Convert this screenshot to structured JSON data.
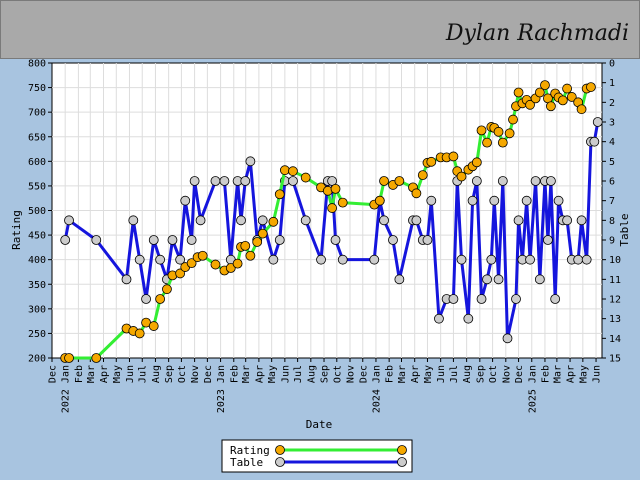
{
  "header": {
    "player_name": "Dylan Rachmadi",
    "background": "#a9a9a9"
  },
  "chart_data": {
    "type": "line",
    "title": "",
    "xlabel": "Date",
    "ylabel_left": "Rating",
    "ylabel_right": "Table",
    "ylim_left": [
      200,
      800
    ],
    "yticks_left": [
      200,
      250,
      300,
      350,
      400,
      450,
      500,
      550,
      600,
      650,
      700,
      750,
      800
    ],
    "ylim_right": [
      15,
      0
    ],
    "yticks_right": [
      0,
      1,
      2,
      3,
      4,
      5,
      6,
      7,
      8,
      9,
      10,
      11,
      12,
      13,
      14,
      15
    ],
    "xlim": [
      "2021-12-01",
      "2025-06-15"
    ],
    "x_tick_labels": [
      {
        "d": "2021-12-01",
        "label": "Dec"
      },
      {
        "d": "2022-01-01",
        "label": "2022 Jan"
      },
      {
        "d": "2022-02-01",
        "label": "Feb"
      },
      {
        "d": "2022-03-01",
        "label": "Mar"
      },
      {
        "d": "2022-04-01",
        "label": "Apr"
      },
      {
        "d": "2022-05-01",
        "label": "May"
      },
      {
        "d": "2022-06-01",
        "label": "Jun"
      },
      {
        "d": "2022-07-01",
        "label": "Jul"
      },
      {
        "d": "2022-08-01",
        "label": "Aug"
      },
      {
        "d": "2022-09-01",
        "label": "Sep"
      },
      {
        "d": "2022-10-01",
        "label": "Oct"
      },
      {
        "d": "2022-11-01",
        "label": "Nov"
      },
      {
        "d": "2022-12-01",
        "label": "Dec"
      },
      {
        "d": "2023-01-01",
        "label": "2023 Jan"
      },
      {
        "d": "2023-02-01",
        "label": "Feb"
      },
      {
        "d": "2023-03-01",
        "label": "Mar"
      },
      {
        "d": "2023-04-01",
        "label": "Apr"
      },
      {
        "d": "2023-05-01",
        "label": "May"
      },
      {
        "d": "2023-06-01",
        "label": "Jun"
      },
      {
        "d": "2023-07-01",
        "label": "Jul"
      },
      {
        "d": "2023-08-01",
        "label": "Aug"
      },
      {
        "d": "2023-09-01",
        "label": "Sep"
      },
      {
        "d": "2023-10-01",
        "label": "Oct"
      },
      {
        "d": "2023-11-01",
        "label": "Nov"
      },
      {
        "d": "2023-12-01",
        "label": "Dec"
      },
      {
        "d": "2024-01-01",
        "label": "2024 Jan"
      },
      {
        "d": "2024-02-01",
        "label": "Feb"
      },
      {
        "d": "2024-03-01",
        "label": "Mar"
      },
      {
        "d": "2024-04-01",
        "label": "Apr"
      },
      {
        "d": "2024-05-01",
        "label": "May"
      },
      {
        "d": "2024-06-01",
        "label": "Jun"
      },
      {
        "d": "2024-07-01",
        "label": "Jul"
      },
      {
        "d": "2024-08-01",
        "label": "Aug"
      },
      {
        "d": "2024-09-01",
        "label": "Sep"
      },
      {
        "d": "2024-10-01",
        "label": "Oct"
      },
      {
        "d": "2024-11-01",
        "label": "Nov"
      },
      {
        "d": "2024-12-01",
        "label": "Dec"
      },
      {
        "d": "2025-01-01",
        "label": "2025 Jan"
      },
      {
        "d": "2025-02-01",
        "label": "Feb"
      },
      {
        "d": "2025-03-01",
        "label": "Mar"
      },
      {
        "d": "2025-04-01",
        "label": "Apr"
      },
      {
        "d": "2025-05-01",
        "label": "May"
      },
      {
        "d": "2025-06-01",
        "label": "Jun"
      }
    ],
    "grid": true,
    "legend_position": "bottom-center",
    "series": [
      {
        "name": "Rating",
        "axis": "left",
        "line_color": "#33ee33",
        "marker_color": "#f5a800",
        "points": [
          [
            "2022-01-01",
            200
          ],
          [
            "2022-01-10",
            200
          ],
          [
            "2022-03-15",
            200
          ],
          [
            "2022-05-25",
            260
          ],
          [
            "2022-06-10",
            255
          ],
          [
            "2022-06-25",
            250
          ],
          [
            "2022-07-10",
            272
          ],
          [
            "2022-07-28",
            265
          ],
          [
            "2022-08-12",
            320
          ],
          [
            "2022-08-28",
            340
          ],
          [
            "2022-09-10",
            368
          ],
          [
            "2022-09-28",
            372
          ],
          [
            "2022-10-10",
            385
          ],
          [
            "2022-10-25",
            393
          ],
          [
            "2022-11-08",
            405
          ],
          [
            "2022-11-20",
            408
          ],
          [
            "2022-12-20",
            390
          ],
          [
            "2023-01-10",
            378
          ],
          [
            "2023-01-25",
            383
          ],
          [
            "2023-02-10",
            392
          ],
          [
            "2023-02-18",
            426
          ],
          [
            "2023-02-28",
            428
          ],
          [
            "2023-03-12",
            408
          ],
          [
            "2023-03-28",
            436
          ],
          [
            "2023-04-10",
            453
          ],
          [
            "2023-05-05",
            477
          ],
          [
            "2023-05-20",
            533
          ],
          [
            "2023-06-01",
            582
          ],
          [
            "2023-06-20",
            580
          ],
          [
            "2023-07-20",
            567
          ],
          [
            "2023-08-25",
            547
          ],
          [
            "2023-09-10",
            540
          ],
          [
            "2023-09-20",
            505
          ],
          [
            "2023-09-28",
            544
          ],
          [
            "2023-10-15",
            516
          ],
          [
            "2023-12-28",
            512
          ],
          [
            "2024-01-10",
            520
          ],
          [
            "2024-01-20",
            560
          ],
          [
            "2024-02-10",
            552
          ],
          [
            "2024-02-25",
            560
          ],
          [
            "2024-03-28",
            547
          ],
          [
            "2024-04-05",
            535
          ],
          [
            "2024-04-20",
            572
          ],
          [
            "2024-05-01",
            597
          ],
          [
            "2024-05-10",
            599
          ],
          [
            "2024-06-01",
            608
          ],
          [
            "2024-06-15",
            608
          ],
          [
            "2024-07-01",
            610
          ],
          [
            "2024-07-10",
            580
          ],
          [
            "2024-07-20",
            569
          ],
          [
            "2024-08-05",
            583
          ],
          [
            "2024-08-15",
            590
          ],
          [
            "2024-08-25",
            598
          ],
          [
            "2024-09-05",
            663
          ],
          [
            "2024-09-18",
            638
          ],
          [
            "2024-09-28",
            670
          ],
          [
            "2024-10-05",
            668
          ],
          [
            "2024-10-15",
            660
          ],
          [
            "2024-10-25",
            638
          ],
          [
            "2024-11-10",
            657
          ],
          [
            "2024-11-18",
            685
          ],
          [
            "2024-11-25",
            712
          ],
          [
            "2024-12-01",
            740
          ],
          [
            "2024-12-10",
            718
          ],
          [
            "2024-12-20",
            725
          ],
          [
            "2024-12-28",
            715
          ],
          [
            "2025-01-10",
            728
          ],
          [
            "2025-01-20",
            740
          ],
          [
            "2025-02-01",
            755
          ],
          [
            "2025-02-08",
            728
          ],
          [
            "2025-02-15",
            712
          ],
          [
            "2025-02-25",
            738
          ],
          [
            "2025-03-05",
            730
          ],
          [
            "2025-03-15",
            724
          ],
          [
            "2025-03-25",
            748
          ],
          [
            "2025-04-05",
            731
          ],
          [
            "2025-04-20",
            720
          ],
          [
            "2025-04-28",
            706
          ],
          [
            "2025-05-10",
            748
          ],
          [
            "2025-05-20",
            751
          ]
        ]
      },
      {
        "name": "Table",
        "axis": "right",
        "line_color": "#1515dd",
        "marker_color": "#cccccc",
        "points": [
          [
            "2022-01-01",
            9
          ],
          [
            "2022-01-10",
            8
          ],
          [
            "2022-03-15",
            9
          ],
          [
            "2022-05-25",
            11
          ],
          [
            "2022-06-10",
            8
          ],
          [
            "2022-06-25",
            10
          ],
          [
            "2022-07-10",
            12
          ],
          [
            "2022-07-28",
            9
          ],
          [
            "2022-08-12",
            10
          ],
          [
            "2022-08-28",
            11
          ],
          [
            "2022-09-10",
            9
          ],
          [
            "2022-09-28",
            10
          ],
          [
            "2022-10-10",
            7
          ],
          [
            "2022-10-25",
            9
          ],
          [
            "2022-11-01",
            6
          ],
          [
            "2022-11-15",
            8
          ],
          [
            "2022-12-20",
            6
          ],
          [
            "2023-01-10",
            6
          ],
          [
            "2023-01-25",
            10
          ],
          [
            "2023-02-10",
            6
          ],
          [
            "2023-02-18",
            8
          ],
          [
            "2023-02-28",
            6
          ],
          [
            "2023-03-12",
            5
          ],
          [
            "2023-03-28",
            9
          ],
          [
            "2023-04-10",
            8
          ],
          [
            "2023-05-05",
            10
          ],
          [
            "2023-05-20",
            9
          ],
          [
            "2023-06-01",
            6
          ],
          [
            "2023-06-20",
            6
          ],
          [
            "2023-07-20",
            8
          ],
          [
            "2023-08-25",
            10
          ],
          [
            "2023-09-10",
            6
          ],
          [
            "2023-09-20",
            6
          ],
          [
            "2023-09-28",
            9
          ],
          [
            "2023-10-15",
            10
          ],
          [
            "2023-12-28",
            10
          ],
          [
            "2024-01-10",
            7
          ],
          [
            "2024-01-20",
            8
          ],
          [
            "2024-02-10",
            9
          ],
          [
            "2024-02-25",
            11
          ],
          [
            "2024-03-28",
            8
          ],
          [
            "2024-04-05",
            8
          ],
          [
            "2024-04-20",
            9
          ],
          [
            "2024-05-01",
            9
          ],
          [
            "2024-05-10",
            7
          ],
          [
            "2024-05-28",
            13
          ],
          [
            "2024-06-15",
            12
          ],
          [
            "2024-07-01",
            12
          ],
          [
            "2024-07-10",
            6
          ],
          [
            "2024-07-20",
            10
          ],
          [
            "2024-08-05",
            13
          ],
          [
            "2024-08-15",
            7
          ],
          [
            "2024-08-25",
            6
          ],
          [
            "2024-09-05",
            12
          ],
          [
            "2024-09-18",
            11
          ],
          [
            "2024-09-28",
            10
          ],
          [
            "2024-10-05",
            7
          ],
          [
            "2024-10-15",
            11
          ],
          [
            "2024-10-25",
            6
          ],
          [
            "2024-11-05",
            14
          ],
          [
            "2024-11-25",
            12
          ],
          [
            "2024-12-01",
            8
          ],
          [
            "2024-12-10",
            10
          ],
          [
            "2024-12-20",
            7
          ],
          [
            "2024-12-28",
            10
          ],
          [
            "2025-01-10",
            6
          ],
          [
            "2025-01-20",
            11
          ],
          [
            "2025-02-01",
            6
          ],
          [
            "2025-02-08",
            9
          ],
          [
            "2025-02-15",
            6
          ],
          [
            "2025-02-25",
            12
          ],
          [
            "2025-03-05",
            7
          ],
          [
            "2025-03-15",
            8
          ],
          [
            "2025-03-25",
            8
          ],
          [
            "2025-04-05",
            10
          ],
          [
            "2025-04-20",
            10
          ],
          [
            "2025-04-28",
            8
          ],
          [
            "2025-05-10",
            10
          ],
          [
            "2025-05-20",
            4
          ],
          [
            "2025-05-28",
            4
          ],
          [
            "2025-06-05",
            3
          ]
        ]
      }
    ]
  }
}
